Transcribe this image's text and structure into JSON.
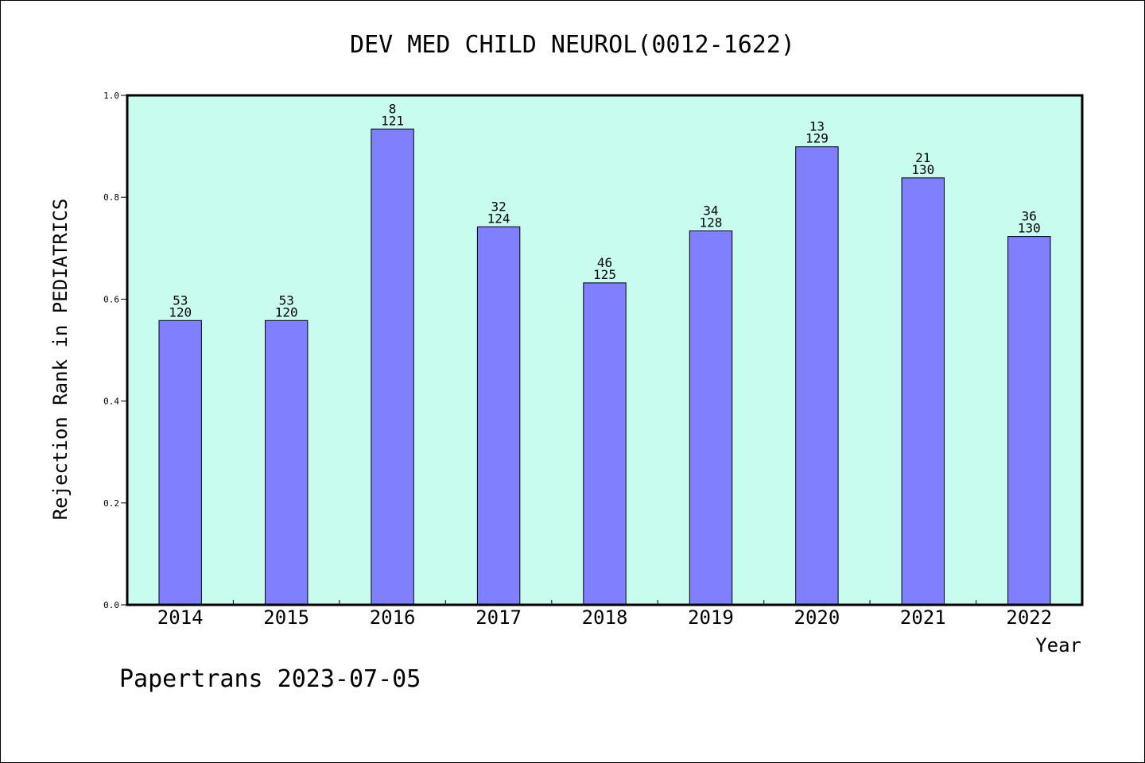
{
  "chart_data": {
    "type": "bar",
    "title": "DEV MED CHILD NEUROL(0012-1622)",
    "xlabel": "Year",
    "ylabel": "Rejection Rank in PEDIATRICS",
    "ylim": [
      0.0,
      1.0
    ],
    "yticks": [
      "0.0",
      "0.2",
      "0.4",
      "0.6",
      "0.8",
      "1.0"
    ],
    "categories": [
      "2014",
      "2015",
      "2016",
      "2017",
      "2018",
      "2019",
      "2020",
      "2021",
      "2022"
    ],
    "values": [
      0.558,
      0.558,
      0.934,
      0.742,
      0.632,
      0.734,
      0.899,
      0.838,
      0.723
    ],
    "labels_top": [
      "53",
      "53",
      "8",
      "32",
      "46",
      "34",
      "13",
      "21",
      "36"
    ],
    "labels_bottom": [
      "120",
      "120",
      "121",
      "124",
      "125",
      "128",
      "129",
      "130",
      "130"
    ],
    "colors": {
      "plot_bg": "#c8fcee",
      "bar": "#8080ff",
      "bar_edge": "#000000"
    },
    "grid": false
  },
  "footer": "Papertrans 2023-07-05"
}
